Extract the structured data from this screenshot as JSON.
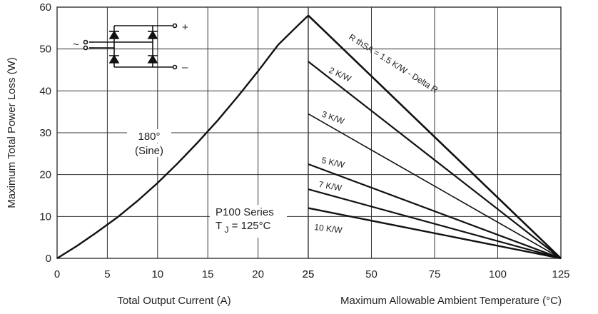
{
  "chart_data": [
    {
      "type": "line",
      "xlabel": "Total Output Current (A)",
      "ylabel": "Maximum Total Power Loss (W)",
      "xlim": [
        0,
        25
      ],
      "ylim": [
        0,
        60
      ],
      "x_ticks": [
        "0",
        "5",
        "10",
        "15",
        "20",
        "25"
      ],
      "y_ticks": [
        "0",
        "10",
        "20",
        "30",
        "40",
        "50",
        "60"
      ],
      "grid": true,
      "series": [
        {
          "name": "",
          "x": [
            0,
            2,
            4,
            6,
            8,
            10,
            12,
            14,
            16,
            18,
            20,
            22,
            24,
            25
          ],
          "values": [
            0,
            3.0,
            6.3,
            9.8,
            13.7,
            18.0,
            22.7,
            27.7,
            33.0,
            38.7,
            44.7,
            51.0,
            55.7,
            58
          ]
        }
      ],
      "annotations": [
        {
          "id": "angle",
          "lines": [
            "180°",
            "(Sine)"
          ]
        },
        {
          "id": "series",
          "lines": [
            "P100 Series"
          ]
        },
        {
          "id": "tj",
          "t": "T",
          "sub": "J",
          "rest": "= 125°C"
        }
      ]
    },
    {
      "type": "line",
      "xlabel": "Maximum Allowable Ambient Temperature (°C)",
      "xlim": [
        25,
        125
      ],
      "x_ticks": [
        "25",
        "50",
        "75",
        "100",
        "125"
      ],
      "ylim": [
        0,
        60
      ],
      "grid": true,
      "series": [
        {
          "name": "R thSA = 1.5 K/W - Delta R",
          "x": [
            25,
            125
          ],
          "values": [
            58,
            0
          ]
        },
        {
          "name": "2 K/W",
          "x": [
            25,
            125
          ],
          "values": [
            47,
            0
          ]
        },
        {
          "name": "3 K/W",
          "x": [
            25,
            125
          ],
          "values": [
            34.5,
            0
          ]
        },
        {
          "name": "5 K/W",
          "x": [
            25,
            125
          ],
          "values": [
            22.5,
            0
          ]
        },
        {
          "name": "7 K/W",
          "x": [
            25,
            125
          ],
          "values": [
            16.5,
            0
          ]
        },
        {
          "name": "10 K/W",
          "x": [
            25,
            125
          ],
          "values": [
            12,
            0
          ]
        }
      ]
    }
  ],
  "circuit": {
    "ac_label": "~",
    "plus_label": "+",
    "minus_label": "–"
  },
  "colors": {
    "line": "#111111",
    "grid": "#333333",
    "text": "#222222"
  }
}
